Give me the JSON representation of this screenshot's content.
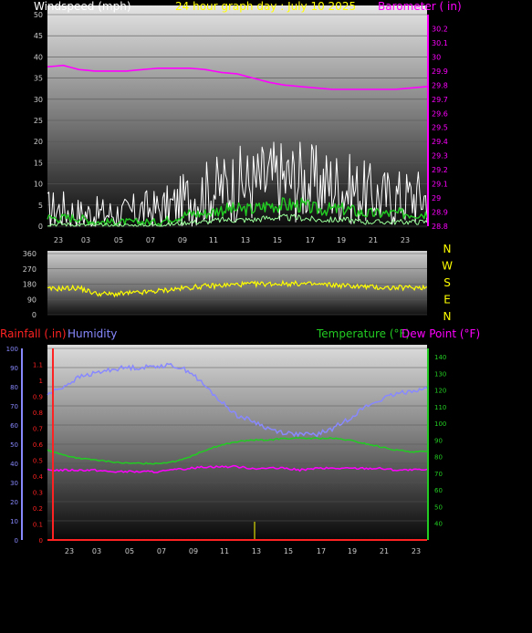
{
  "colors": {
    "background": "#000000",
    "wind_label": "#ffffff",
    "title": "#ffff00",
    "barometer": "#ff00ff",
    "wind_gust": "#ffffff",
    "wind_avg": "#22cc22",
    "wind_low": "#99ff99",
    "direction": "#ffff00",
    "rainfall": "#ff2222",
    "humidity": "#8888ff",
    "temperature": "#22cc22",
    "dewpoint": "#ff00ff",
    "rain_tick": "#ffff00"
  },
  "chart_data": [
    {
      "type": "line",
      "title": "24 hour graph day : July 10 2025",
      "ylabel": "Windspeed (mph)",
      "y2label": "Barometer ( in)",
      "x_ticks": [
        "23",
        "03",
        "05",
        "07",
        "09",
        "11",
        "13",
        "15",
        "17",
        "19",
        "21",
        "23"
      ],
      "y_ticks": [
        "0",
        "5",
        "10",
        "15",
        "20",
        "25",
        "30",
        "35",
        "40",
        "45",
        "50"
      ],
      "y2_ticks": [
        "28.8",
        "28.9",
        "29",
        "29.1",
        "29.2",
        "29.3",
        "29.4",
        "29.5",
        "29.6",
        "29.7",
        "29.8",
        "29.9",
        "30",
        "30.1",
        "30.2"
      ],
      "ylim": [
        0,
        50
      ],
      "y2lim": [
        28.8,
        30.3
      ],
      "x_hours": [
        0,
        1,
        2,
        3,
        4,
        5,
        6,
        7,
        8,
        9,
        10,
        11,
        12,
        13,
        14,
        15,
        16,
        17,
        18,
        19,
        20,
        21,
        22,
        23,
        24
      ],
      "series": [
        {
          "name": "Barometer ( in)",
          "axis": "right",
          "values": [
            29.93,
            29.94,
            29.91,
            29.9,
            29.9,
            29.9,
            29.91,
            29.92,
            29.92,
            29.92,
            29.91,
            29.89,
            29.88,
            29.85,
            29.82,
            29.8,
            29.79,
            29.78,
            29.77,
            29.77,
            29.77,
            29.77,
            29.77,
            29.78,
            29.79
          ]
        },
        {
          "axis": "left",
          "values": [
            4,
            4,
            3,
            3,
            3,
            3,
            4,
            4,
            5,
            7,
            8,
            9,
            10,
            10,
            11,
            11,
            11,
            10,
            10,
            9,
            8,
            7,
            7,
            7,
            7
          ]
        },
        {
          "axis": "left",
          "values": [
            2,
            2,
            2,
            1,
            1,
            1,
            1,
            1,
            2,
            3,
            3,
            4,
            4,
            4,
            5,
            5,
            5,
            4,
            4,
            4,
            3,
            3,
            3,
            3,
            3
          ]
        },
        {
          "axis": "left",
          "values": [
            0.5,
            0.5,
            0.3,
            0.2,
            0.2,
            0.2,
            0.2,
            0.3,
            0.5,
            1,
            1,
            1.5,
            1.5,
            1.5,
            2,
            2,
            2,
            1.5,
            1.5,
            1.5,
            1,
            1,
            1,
            1,
            1
          ]
        }
      ]
    },
    {
      "type": "line",
      "title": "",
      "y_ticks": [
        "0",
        "90",
        "180",
        "270",
        "360"
      ],
      "ylim": [
        0,
        360
      ],
      "compass": [
        "N",
        "W",
        "S",
        "E",
        "N"
      ],
      "x_hours": [
        0,
        1,
        2,
        3,
        4,
        5,
        6,
        7,
        8,
        9,
        10,
        11,
        12,
        13,
        14,
        15,
        16,
        17,
        18,
        19,
        20,
        21,
        22,
        23,
        24
      ],
      "series": [
        {
          "values": [
            150,
            155,
            158,
            125,
            120,
            125,
            130,
            140,
            150,
            160,
            168,
            172,
            178,
            180,
            182,
            183,
            182,
            178,
            175,
            170,
            165,
            160,
            158,
            160,
            162
          ]
        }
      ]
    },
    {
      "type": "line",
      "title": "",
      "ylabel": "Rainfall (.in)",
      "y2label": "Humidity",
      "y3label": "Temperature (°F)",
      "y4label": "Dew Point (°F)",
      "x_ticks": [
        "23",
        "03",
        "05",
        "07",
        "09",
        "11",
        "13",
        "15",
        "17",
        "19",
        "21",
        "23"
      ],
      "humidity_ticks": [
        "0",
        "10",
        "20",
        "30",
        "40",
        "50",
        "60",
        "70",
        "80",
        "90",
        "100"
      ],
      "rain_ticks": [
        "0",
        "0.1",
        "0.2",
        "0.3",
        "0.4",
        "0.5",
        "0.6",
        "0.7",
        "0.8",
        "0.9",
        "1",
        "1.1"
      ],
      "temp_ticks": [
        "40",
        "50",
        "60",
        "70",
        "80",
        "90",
        "100",
        "110",
        "120",
        "130",
        "140"
      ],
      "humidity_lim": [
        0,
        100
      ],
      "rain_lim": [
        0,
        1.2
      ],
      "temp_lim": [
        30,
        145
      ],
      "x_hours": [
        0,
        1,
        2,
        3,
        4,
        5,
        6,
        7,
        8,
        9,
        10,
        11,
        12,
        13,
        14,
        15,
        16,
        17,
        18,
        19,
        20,
        21,
        22,
        23,
        24
      ],
      "series": [
        {
          "name": "Humidity",
          "axis": "humidity",
          "values": [
            76,
            80,
            85,
            87,
            89,
            90,
            90,
            91,
            91,
            88,
            80,
            72,
            65,
            62,
            58,
            56,
            55,
            55,
            58,
            63,
            69,
            73,
            76,
            78,
            79
          ]
        },
        {
          "name": "Temperature (°F)",
          "axis": "temp",
          "values": [
            84,
            81,
            79,
            78,
            77,
            76,
            76,
            76,
            77,
            80,
            84,
            87,
            89,
            90,
            90,
            91,
            91,
            91,
            91,
            90,
            88,
            86,
            84,
            83,
            83
          ]
        },
        {
          "name": "Dew Point (°F)",
          "axis": "temp",
          "values": [
            72,
            72,
            72,
            72,
            71,
            71,
            71,
            71,
            72,
            73,
            74,
            74,
            74,
            73,
            73,
            73,
            72,
            73,
            73,
            73,
            73,
            73,
            72,
            72,
            72
          ]
        },
        {
          "name": "Rainfall (.in)",
          "axis": "rain",
          "values": [
            0,
            0,
            0,
            0,
            0,
            0,
            0,
            0,
            0,
            0,
            0,
            0,
            0,
            0,
            0,
            0,
            0,
            0,
            0,
            0,
            0,
            0,
            0,
            0,
            0
          ]
        }
      ]
    }
  ]
}
